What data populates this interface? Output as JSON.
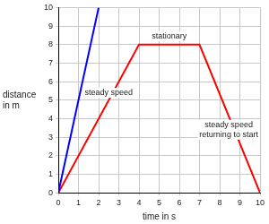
{
  "chart_data": {
    "type": "line",
    "xlabel": "time in s",
    "ylabel": "distance\nin m",
    "series": [
      {
        "color": "#0000ff",
        "x": [
          0,
          2
        ],
        "values": [
          0,
          10
        ]
      },
      {
        "color": "#ff0000",
        "x": [
          0,
          4,
          7,
          10
        ],
        "values": [
          0,
          8,
          8,
          0
        ]
      }
    ],
    "annotations": [
      "steady speed",
      "stationary",
      "steady speed\nreturning to start"
    ],
    "xlim": [
      0,
      10
    ],
    "xticks": [
      0,
      1,
      2,
      3,
      4,
      5,
      6,
      7,
      8,
      9,
      10
    ],
    "ylim": [
      0,
      10
    ],
    "yticks": [
      0,
      1,
      2,
      3,
      4,
      5,
      6,
      7,
      8,
      9,
      10
    ],
    "grid": true
  }
}
